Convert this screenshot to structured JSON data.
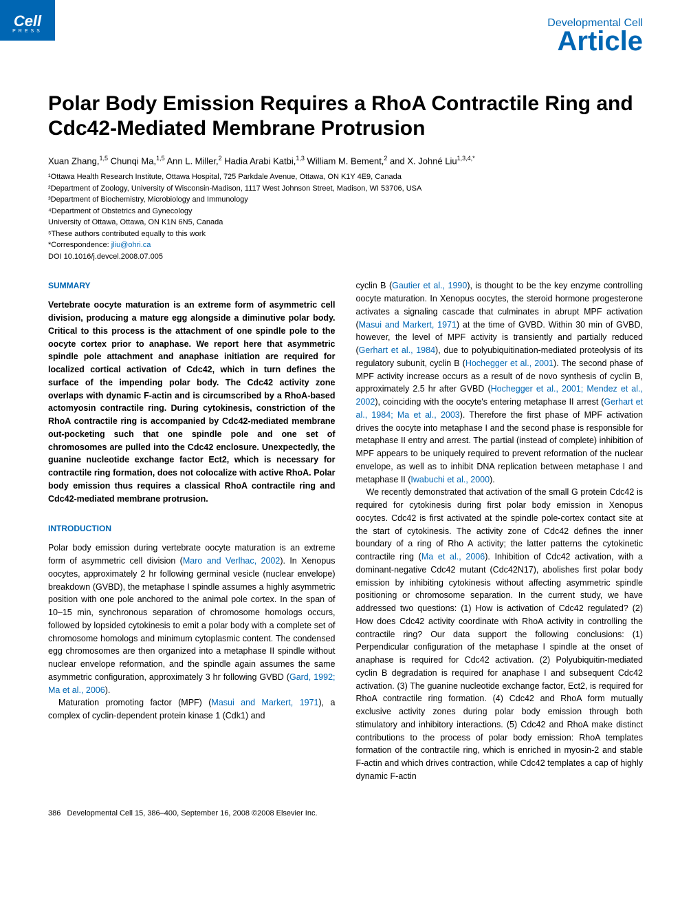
{
  "header": {
    "logo_main": "Cell",
    "logo_sub": "PRESS",
    "journal": "Developmental Cell",
    "article_type": "Article"
  },
  "title": "Polar Body Emission Requires a RhoA Contractile Ring and Cdc42-Mediated Membrane Protrusion",
  "authors_html": "Xuan Zhang,<sup>1,5</sup> Chunqi Ma,<sup>1,5</sup> Ann L. Miller,<sup>2</sup> Hadia Arabi Katbi,<sup>1,3</sup> William M. Bement,<sup>2</sup> and X. Johné Liu<sup>1,3,4,*</sup>",
  "affiliations": [
    "¹Ottawa Health Research Institute, Ottawa Hospital, 725 Parkdale Avenue, Ottawa, ON K1Y 4E9, Canada",
    "²Department of Zoology, University of Wisconsin-Madison, 1117 West Johnson Street, Madison, WI 53706, USA",
    "³Department of Biochemistry, Microbiology and Immunology",
    "⁴Department of Obstetrics and Gynecology",
    "University of Ottawa, Ottawa, ON K1N 6N5, Canada",
    "⁵These authors contributed equally to this work"
  ],
  "correspondence_label": "*Correspondence: ",
  "correspondence_email": "jliu@ohri.ca",
  "doi": "DOI 10.1016/j.devcel.2008.07.005",
  "summary_heading": "SUMMARY",
  "summary_text": "Vertebrate oocyte maturation is an extreme form of asymmetric cell division, producing a mature egg alongside a diminutive polar body. Critical to this process is the attachment of one spindle pole to the oocyte cortex prior to anaphase. We report here that asymmetric spindle pole attachment and anaphase initiation are required for localized cortical activation of Cdc42, which in turn defines the surface of the impending polar body. The Cdc42 activity zone overlaps with dynamic F-actin and is circumscribed by a RhoA-based actomyosin contractile ring. During cytokinesis, constriction of the RhoA contractile ring is accompanied by Cdc42-mediated membrane out-pocketing such that one spindle pole and one set of chromosomes are pulled into the Cdc42 enclosure. Unexpectedly, the guanine nucleotide exchange factor Ect2, which is necessary for contractile ring formation, does not colocalize with active RhoA. Polar body emission thus requires a classical RhoA contractile ring and Cdc42-mediated membrane protrusion.",
  "intro_heading": "INTRODUCTION",
  "intro_p1_pre": "Polar body emission during vertebrate oocyte maturation is an extreme form of asymmetric cell division (",
  "intro_ref1": "Maro and Verlhac, 2002",
  "intro_p1_mid": "). In Xenopus oocytes, approximately 2 hr following germinal vesicle (nuclear envelope) breakdown (GVBD), the metaphase I spindle assumes a highly asymmetric position with one pole anchored to the animal pole cortex. In the span of 10–15 min, synchronous separation of chromosome homologs occurs, followed by lopsided cytokinesis to emit a polar body with a complete set of chromosome homologs and minimum cytoplasmic content. The condensed egg chromosomes are then organized into a metaphase II spindle without nuclear envelope reformation, and the spindle again assumes the same asymmetric configuration, approximately 3 hr following GVBD (",
  "intro_ref2": "Gard, 1992; Ma et al., 2006",
  "intro_p1_end": ").",
  "intro_p2_pre": "Maturation promoting factor (MPF) (",
  "intro_ref3": "Masui and Markert, 1971",
  "intro_p2_end": "), a complex of cyclin-dependent protein kinase 1 (Cdk1) and",
  "col2_p1_pre": "cyclin B (",
  "col2_ref1": "Gautier et al., 1990",
  "col2_p1_a": "), is thought to be the key enzyme controlling oocyte maturation. In Xenopus oocytes, the steroid hormone progesterone activates a signaling cascade that culminates in abrupt MPF activation (",
  "col2_ref2": "Masui and Markert, 1971",
  "col2_p1_b": ") at the time of GVBD. Within 30 min of GVBD, however, the level of MPF activity is transiently and partially reduced (",
  "col2_ref3": "Gerhart et al., 1984",
  "col2_p1_c": "), due to polyubiquitination-mediated proteolysis of its regulatory subunit, cyclin B (",
  "col2_ref4": "Hochegger et al., 2001",
  "col2_p1_d": "). The second phase of MPF activity increase occurs as a result of de novo synthesis of cyclin B, approximately 2.5 hr after GVBD (",
  "col2_ref5": "Hochegger et al., 2001; Mendez et al., 2002",
  "col2_p1_e": "), coinciding with the oocyte's entering metaphase II arrest (",
  "col2_ref6": "Gerhart et al., 1984; Ma et al., 2003",
  "col2_p1_f": "). Therefore the first phase of MPF activation drives the oocyte into metaphase I and the second phase is responsible for metaphase II entry and arrest. The partial (instead of complete) inhibition of MPF appears to be uniquely required to prevent reformation of the nuclear envelope, as well as to inhibit DNA replication between metaphase I and metaphase II (",
  "col2_ref7": "Iwabuchi et al., 2000",
  "col2_p1_g": ").",
  "col2_p2_pre": "We recently demonstrated that activation of the small G protein Cdc42 is required for cytokinesis during first polar body emission in Xenopus oocytes. Cdc42 is first activated at the spindle pole-cortex contact site at the start of cytokinesis. The activity zone of Cdc42 defines the inner boundary of a ring of Rho A activity; the latter patterns the cytokinetic contractile ring (",
  "col2_ref8": "Ma et al., 2006",
  "col2_p2_end": "). Inhibition of Cdc42 activation, with a dominant-negative Cdc42 mutant (Cdc42N17), abolishes first polar body emission by inhibiting cytokinesis without affecting asymmetric spindle positioning or chromosome separation. In the current study, we have addressed two questions: (1) How is activation of Cdc42 regulated? (2) How does Cdc42 activity coordinate with RhoA activity in controlling the contractile ring? Our data support the following conclusions: (1) Perpendicular configuration of the metaphase I spindle at the onset of anaphase is required for Cdc42 activation. (2) Polyubiquitin-mediated cyclin B degradation is required for anaphase I and subsequent Cdc42 activation. (3) The guanine nucleotide exchange factor, Ect2, is required for RhoA contractile ring formation. (4) Cdc42 and RhoA form mutually exclusive activity zones during polar body emission through both stimulatory and inhibitory interactions. (5) Cdc42 and RhoA make distinct contributions to the process of polar body emission: RhoA templates formation of the contractile ring, which is enriched in myosin-2 and stable F-actin and which drives contraction, while Cdc42 templates a cap of highly dynamic F-actin",
  "footer_page": "386",
  "footer_text": "Developmental Cell 15, 386–400, September 16, 2008 ©2008 Elsevier Inc."
}
